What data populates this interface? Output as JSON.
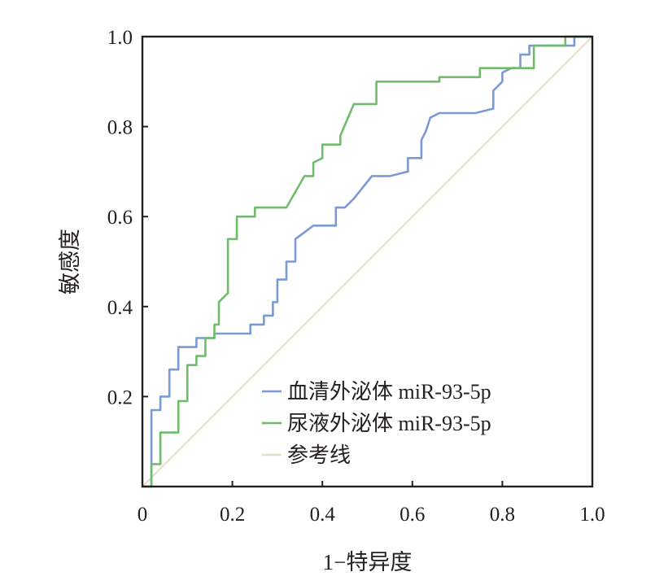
{
  "chart_data": {
    "type": "line",
    "xlabel": "1−特异度",
    "ylabel": "敏感度",
    "xlim": [
      0,
      1
    ],
    "ylim": [
      0,
      1
    ],
    "x_ticks": [
      "0",
      "0.2",
      "0.4",
      "0.6",
      "0.8",
      "1.0"
    ],
    "y_ticks": [
      "0.2",
      "0.4",
      "0.6",
      "0.8",
      "1.0"
    ],
    "grid": false,
    "legend_position": "bottom-right",
    "series": [
      {
        "name": "血清外泌体 miR-93-5p",
        "color": "#7b9ad4",
        "points": [
          [
            0,
            0
          ],
          [
            0.02,
            0
          ],
          [
            0.02,
            0.17
          ],
          [
            0.04,
            0.17
          ],
          [
            0.04,
            0.2
          ],
          [
            0.06,
            0.2
          ],
          [
            0.06,
            0.26
          ],
          [
            0.08,
            0.26
          ],
          [
            0.08,
            0.31
          ],
          [
            0.12,
            0.31
          ],
          [
            0.12,
            0.33
          ],
          [
            0.16,
            0.33
          ],
          [
            0.16,
            0.34
          ],
          [
            0.24,
            0.34
          ],
          [
            0.24,
            0.36
          ],
          [
            0.27,
            0.36
          ],
          [
            0.27,
            0.38
          ],
          [
            0.29,
            0.38
          ],
          [
            0.29,
            0.41
          ],
          [
            0.3,
            0.41
          ],
          [
            0.3,
            0.46
          ],
          [
            0.32,
            0.46
          ],
          [
            0.32,
            0.5
          ],
          [
            0.34,
            0.5
          ],
          [
            0.34,
            0.55
          ],
          [
            0.38,
            0.58
          ],
          [
            0.43,
            0.58
          ],
          [
            0.43,
            0.62
          ],
          [
            0.45,
            0.62
          ],
          [
            0.47,
            0.64
          ],
          [
            0.51,
            0.69
          ],
          [
            0.55,
            0.69
          ],
          [
            0.59,
            0.7
          ],
          [
            0.59,
            0.73
          ],
          [
            0.62,
            0.73
          ],
          [
            0.62,
            0.77
          ],
          [
            0.63,
            0.79
          ],
          [
            0.64,
            0.82
          ],
          [
            0.66,
            0.83
          ],
          [
            0.74,
            0.83
          ],
          [
            0.78,
            0.84
          ],
          [
            0.78,
            0.88
          ],
          [
            0.8,
            0.9
          ],
          [
            0.8,
            0.92
          ],
          [
            0.82,
            0.93
          ],
          [
            0.84,
            0.93
          ],
          [
            0.84,
            0.96
          ],
          [
            0.86,
            0.96
          ],
          [
            0.86,
            0.98
          ],
          [
            0.96,
            0.98
          ],
          [
            0.96,
            1
          ],
          [
            1,
            1
          ]
        ]
      },
      {
        "name": "尿液外泌体 miR-93-5p",
        "color": "#6fbd6a",
        "points": [
          [
            0,
            0
          ],
          [
            0.02,
            0
          ],
          [
            0.02,
            0.05
          ],
          [
            0.04,
            0.05
          ],
          [
            0.04,
            0.12
          ],
          [
            0.08,
            0.12
          ],
          [
            0.08,
            0.19
          ],
          [
            0.1,
            0.19
          ],
          [
            0.1,
            0.27
          ],
          [
            0.12,
            0.27
          ],
          [
            0.12,
            0.29
          ],
          [
            0.14,
            0.29
          ],
          [
            0.14,
            0.33
          ],
          [
            0.16,
            0.33
          ],
          [
            0.16,
            0.36
          ],
          [
            0.17,
            0.36
          ],
          [
            0.17,
            0.41
          ],
          [
            0.19,
            0.43
          ],
          [
            0.19,
            0.55
          ],
          [
            0.21,
            0.55
          ],
          [
            0.21,
            0.6
          ],
          [
            0.25,
            0.6
          ],
          [
            0.25,
            0.62
          ],
          [
            0.32,
            0.62
          ],
          [
            0.36,
            0.69
          ],
          [
            0.38,
            0.69
          ],
          [
            0.38,
            0.72
          ],
          [
            0.4,
            0.73
          ],
          [
            0.4,
            0.76
          ],
          [
            0.44,
            0.76
          ],
          [
            0.44,
            0.78
          ],
          [
            0.47,
            0.85
          ],
          [
            0.52,
            0.85
          ],
          [
            0.52,
            0.9
          ],
          [
            0.66,
            0.9
          ],
          [
            0.66,
            0.91
          ],
          [
            0.75,
            0.91
          ],
          [
            0.75,
            0.93
          ],
          [
            0.87,
            0.93
          ],
          [
            0.87,
            0.98
          ],
          [
            0.94,
            0.98
          ],
          [
            0.94,
            1
          ],
          [
            1,
            1
          ]
        ]
      },
      {
        "name": "参考线",
        "color": "#e3e0c3",
        "points": [
          [
            0,
            0
          ],
          [
            1,
            1
          ]
        ]
      }
    ]
  }
}
